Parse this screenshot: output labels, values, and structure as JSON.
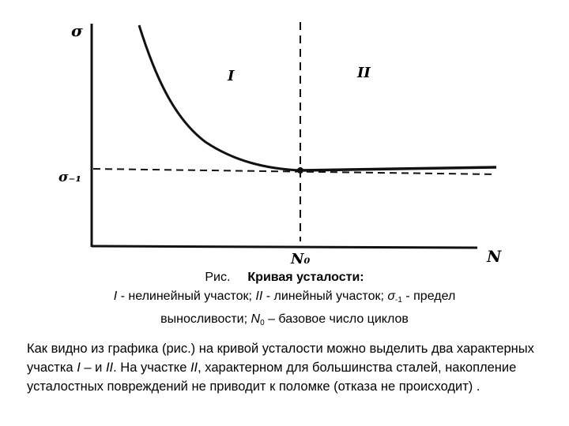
{
  "figure": {
    "y_axis_label": "σ",
    "endurance_label": "σ₋₁",
    "n0_label": "N₀",
    "x_axis_label": "N",
    "region_1": "I",
    "region_2": "II",
    "colors": {
      "ink": "#111111",
      "background": "#ffffff"
    }
  },
  "caption": {
    "prefix": "Рис.",
    "title": "Кривая усталости:",
    "item_1_sym": "I",
    "item_1_text": " - нелинейный участок; ",
    "item_2_sym": "II",
    "item_2_text": " - линейный участок; ",
    "item_3_sym": "σ",
    "item_3_sub": "-1",
    "item_3_text": " -  предел",
    "line_3_text": "выносливости; ",
    "item_4_sym": "N",
    "item_4_sub": "0",
    "item_4_text": " – базовое число циклов"
  },
  "body": {
    "t1": "Как видно из графика (рис.) на кривой усталости можно выделить два характерных участка ",
    "s1": "I",
    "t2": " – и ",
    "s2": "II",
    "t3": ". На участке ",
    "s3": "II",
    "t4": ", характерном для большинства сталей, накопление усталостных повреждений не приводит к поломке (отказа не происходит) ."
  }
}
